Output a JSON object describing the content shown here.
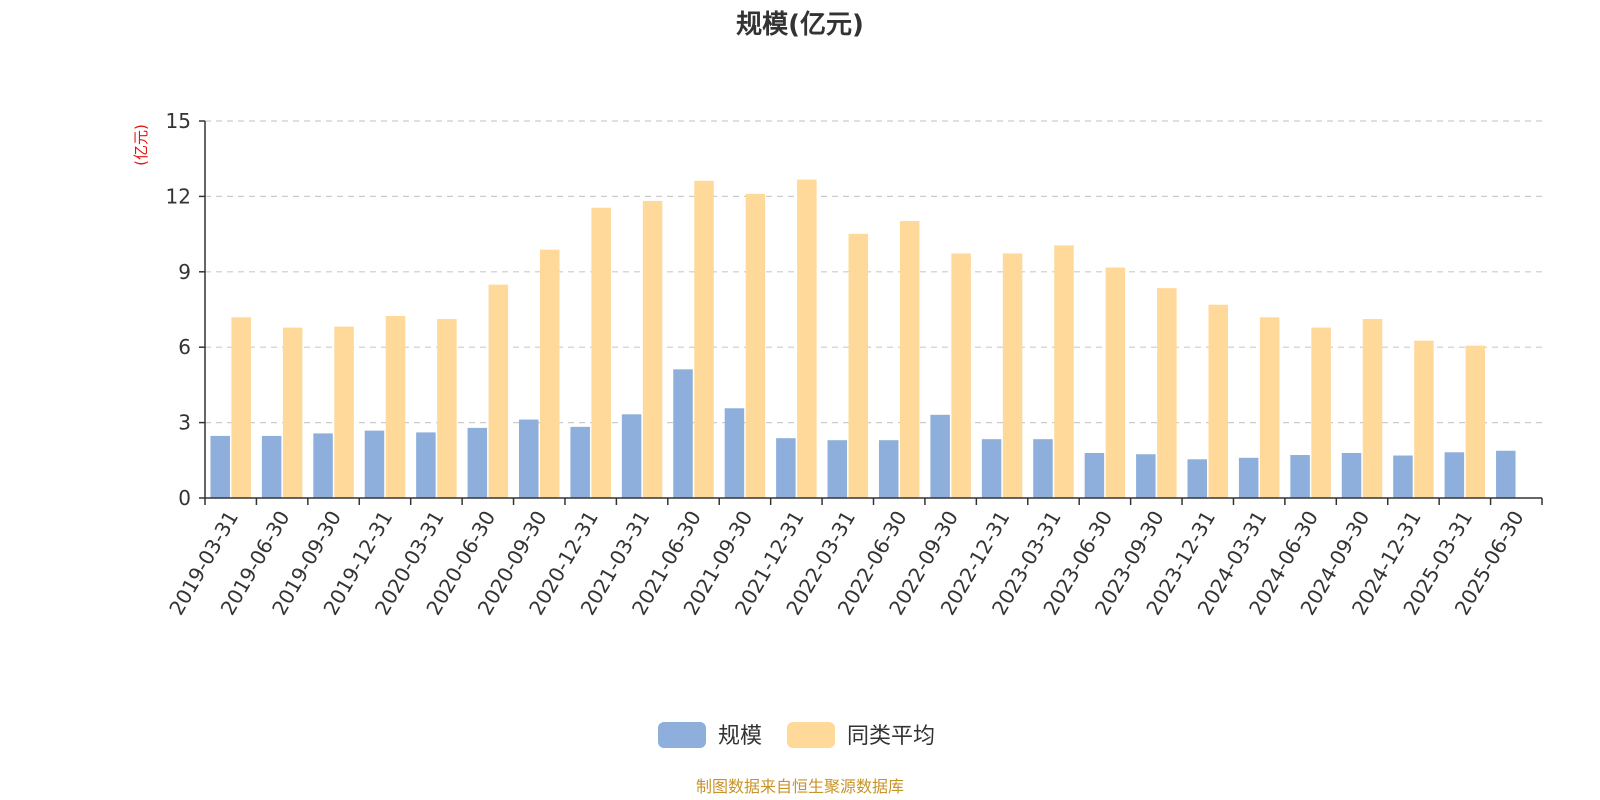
{
  "chart_data": {
    "type": "bar",
    "title": "规模(亿元)",
    "ylabel": "(亿元)",
    "ylim": [
      0,
      15
    ],
    "yticks": [
      "0",
      "3",
      "6",
      "9",
      "12",
      "15"
    ],
    "grid": true,
    "legend_position": "bottom-center",
    "categories": [
      "2019-03-31",
      "2019-06-30",
      "2019-09-30",
      "2019-12-31",
      "2020-03-31",
      "2020-06-30",
      "2020-09-30",
      "2020-12-31",
      "2021-03-31",
      "2021-06-30",
      "2021-09-30",
      "2021-12-31",
      "2022-03-31",
      "2022-06-30",
      "2022-09-30",
      "2022-12-31",
      "2023-03-31",
      "2023-06-30",
      "2023-09-30",
      "2023-12-31",
      "2024-03-31",
      "2024-06-30",
      "2024-09-30",
      "2024-12-31",
      "2025-03-31",
      "2025-06-30"
    ],
    "series": [
      {
        "name": "规模",
        "color": "#8eaedb",
        "values": [
          2.47,
          2.47,
          2.57,
          2.68,
          2.61,
          2.79,
          3.12,
          2.83,
          3.33,
          5.12,
          3.57,
          2.38,
          2.3,
          2.3,
          3.31,
          2.34,
          2.34,
          1.79,
          1.74,
          1.54,
          1.6,
          1.71,
          1.79,
          1.69,
          1.82,
          1.88
        ]
      },
      {
        "name": "同类平均",
        "color": "#ffd99a",
        "values": [
          7.19,
          6.78,
          6.82,
          7.24,
          7.12,
          8.49,
          9.88,
          11.55,
          11.82,
          12.62,
          12.1,
          12.67,
          10.51,
          11.02,
          9.73,
          9.73,
          10.05,
          9.17,
          8.35,
          7.69,
          7.19,
          6.78,
          7.12,
          6.26,
          6.06,
          null
        ]
      }
    ],
    "source": "制图数据来自恒生聚源数据库",
    "colors": {
      "unit_label": "#e8100e",
      "source_text": "#c8942a",
      "axis": "#333333",
      "grid": "#cccccc"
    }
  }
}
